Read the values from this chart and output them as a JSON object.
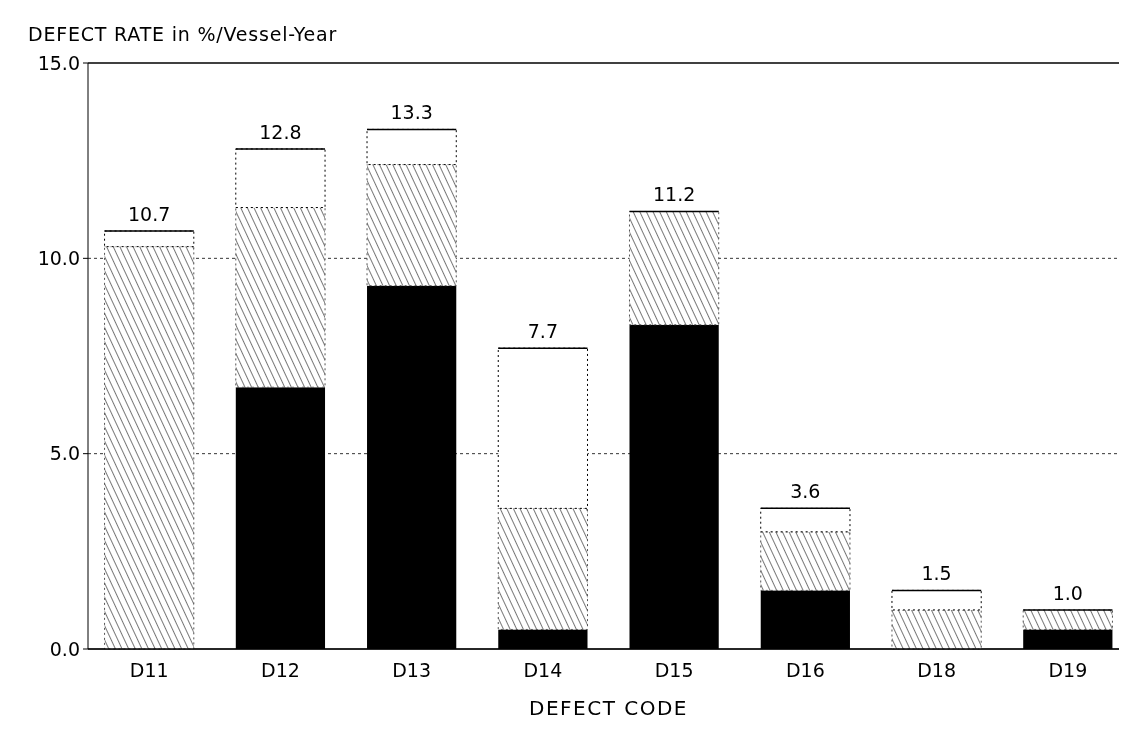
{
  "chart_data": {
    "type": "bar",
    "stacked": true,
    "ylabel": "DEFECT RATE in %/Vessel-Year",
    "xlabel": "DEFECT CODE",
    "categories": [
      "D11",
      "D12",
      "D13",
      "D14",
      "D15",
      "D16",
      "D18",
      "D19"
    ],
    "series": [
      {
        "color": "#000000",
        "values": [
          0,
          6.7,
          9.3,
          0.5,
          8.3,
          1.5,
          0,
          0.5
        ]
      },
      {
        "color": "#555555",
        "values": [
          10.3,
          4.6,
          3.1,
          3.1,
          2.9,
          1.5,
          1.0,
          0.5
        ]
      },
      {
        "color": "#ffffff",
        "values": [
          0.4,
          1.5,
          0.9,
          4.1,
          0,
          0.6,
          0.5,
          0
        ]
      }
    ],
    "totals": [
      "10.7",
      "12.8",
      "13.3",
      "7.7",
      "11.2",
      "3.6",
      "1.5",
      "1.0"
    ],
    "ylim": [
      0,
      15
    ],
    "yticks": [
      {
        "value": 0,
        "label": "0.0"
      },
      {
        "value": 5,
        "label": "5.0"
      },
      {
        "value": 10,
        "label": "10.0"
      },
      {
        "value": 15,
        "label": "15.0"
      }
    ],
    "grid": "y"
  }
}
